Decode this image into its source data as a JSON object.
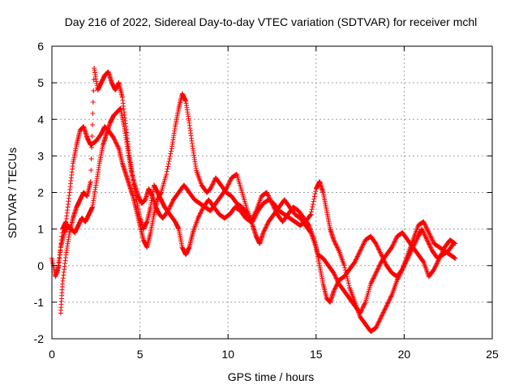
{
  "chart_data": {
    "type": "scatter",
    "title": "Day 216 of 2022, Sidereal Day-to-day VTEC variation (SDTVAR) for receiver mchl",
    "xlabel": "GPS time / hours",
    "ylabel": "SDTVAR / TECUs",
    "xlim": [
      0,
      25
    ],
    "ylim": [
      -2,
      6
    ],
    "xticks": [
      "0",
      "5",
      "10",
      "15",
      "20",
      "25"
    ],
    "yticks": [
      "-2",
      "-1",
      "0",
      "1",
      "2",
      "3",
      "4",
      "5",
      "6"
    ],
    "grid": true,
    "marker": "plus",
    "series": [
      {
        "name": "track-a",
        "color": "#ff0000",
        "points": [
          [
            0.0,
            0.2
          ],
          [
            0.2,
            -0.3
          ],
          [
            0.4,
            0.0
          ],
          [
            0.6,
            1.0
          ],
          [
            0.8,
            1.2
          ],
          [
            1.0,
            2.0
          ],
          [
            1.2,
            2.8
          ],
          [
            1.4,
            3.3
          ],
          [
            1.6,
            3.7
          ],
          [
            1.8,
            3.8
          ],
          [
            2.0,
            3.5
          ],
          [
            2.2,
            3.3
          ],
          [
            2.5,
            3.4
          ],
          [
            2.8,
            3.6
          ],
          [
            3.0,
            3.8
          ],
          [
            3.2,
            3.7
          ],
          [
            3.5,
            3.5
          ],
          [
            3.8,
            3.2
          ],
          [
            4.0,
            2.8
          ],
          [
            4.2,
            2.5
          ],
          [
            4.4,
            2.2
          ],
          [
            4.6,
            1.9
          ],
          [
            4.8,
            1.5
          ],
          [
            5.0,
            1.1
          ],
          [
            5.2,
            0.7
          ],
          [
            5.4,
            0.5
          ],
          [
            5.6,
            0.9
          ],
          [
            5.8,
            1.4
          ],
          [
            6.0,
            1.8
          ],
          [
            6.2,
            2.0
          ],
          [
            6.5,
            2.5
          ],
          [
            6.8,
            3.2
          ],
          [
            7.0,
            3.8
          ],
          [
            7.2,
            4.3
          ],
          [
            7.4,
            4.7
          ],
          [
            7.6,
            4.5
          ],
          [
            7.8,
            3.9
          ],
          [
            8.0,
            3.2
          ],
          [
            8.2,
            2.6
          ],
          [
            8.5,
            2.2
          ],
          [
            8.8,
            2.0
          ],
          [
            9.0,
            2.1
          ],
          [
            9.3,
            2.4
          ],
          [
            9.6,
            2.2
          ],
          [
            9.9,
            2.0
          ],
          [
            10.2,
            1.9
          ],
          [
            10.5,
            1.7
          ],
          [
            10.8,
            1.6
          ],
          [
            11.1,
            1.4
          ],
          [
            11.4,
            1.2
          ],
          [
            11.7,
            1.5
          ],
          [
            12.0,
            1.7
          ],
          [
            12.3,
            1.8
          ],
          [
            12.6,
            1.7
          ],
          [
            12.9,
            1.5
          ],
          [
            13.2,
            1.4
          ],
          [
            13.5,
            1.3
          ],
          [
            13.8,
            1.2
          ],
          [
            14.1,
            1.1
          ],
          [
            14.4,
            1.2
          ],
          [
            14.7,
            1.4
          ],
          [
            15.0,
            2.1
          ],
          [
            15.2,
            2.3
          ],
          [
            15.4,
            2.0
          ],
          [
            15.6,
            1.5
          ],
          [
            15.8,
            1.0
          ],
          [
            16.0,
            0.7
          ],
          [
            16.3,
            0.4
          ],
          [
            16.6,
            0.0
          ],
          [
            16.9,
            -0.6
          ],
          [
            17.2,
            -1.0
          ],
          [
            17.5,
            -1.4
          ],
          [
            17.8,
            -1.6
          ],
          [
            18.1,
            -1.8
          ],
          [
            18.4,
            -1.7
          ],
          [
            18.7,
            -1.4
          ],
          [
            19.0,
            -1.1
          ],
          [
            19.3,
            -0.8
          ],
          [
            19.6,
            -0.4
          ],
          [
            19.9,
            -0.1
          ],
          [
            20.2,
            0.2
          ],
          [
            20.5,
            0.5
          ],
          [
            20.8,
            0.8
          ],
          [
            21.0,
            1.0
          ],
          [
            21.3,
            0.7
          ],
          [
            21.6,
            0.4
          ],
          [
            21.9,
            0.2
          ],
          [
            22.2,
            0.3
          ],
          [
            22.5,
            0.4
          ],
          [
            22.8,
            0.6
          ]
        ]
      },
      {
        "name": "track-b",
        "color": "#ff0000",
        "points": [
          [
            0.3,
            -0.2
          ],
          [
            0.5,
            0.5
          ],
          [
            0.7,
            0.9
          ],
          [
            0.9,
            1.1
          ],
          [
            1.1,
            1.0
          ],
          [
            1.3,
            0.9
          ],
          [
            1.5,
            1.1
          ],
          [
            1.7,
            1.3
          ],
          [
            1.9,
            1.2
          ],
          [
            2.1,
            1.4
          ],
          [
            2.3,
            1.6
          ],
          [
            2.5,
            2.2
          ],
          [
            2.7,
            2.8
          ],
          [
            2.9,
            3.3
          ],
          [
            3.1,
            3.6
          ],
          [
            3.3,
            3.9
          ],
          [
            3.5,
            4.1
          ],
          [
            3.7,
            4.2
          ],
          [
            3.9,
            4.3
          ],
          [
            4.1,
            3.8
          ],
          [
            4.3,
            3.2
          ],
          [
            4.5,
            2.6
          ],
          [
            4.7,
            2.2
          ],
          [
            4.9,
            1.9
          ],
          [
            5.1,
            1.7
          ],
          [
            5.3,
            1.8
          ],
          [
            5.5,
            2.1
          ],
          [
            5.7,
            1.9
          ],
          [
            5.9,
            1.6
          ],
          [
            6.1,
            1.4
          ],
          [
            6.3,
            1.3
          ],
          [
            6.6,
            1.5
          ],
          [
            6.9,
            1.8
          ],
          [
            7.2,
            2.0
          ],
          [
            7.5,
            2.2
          ],
          [
            7.8,
            2.0
          ],
          [
            8.1,
            1.8
          ],
          [
            8.4,
            1.7
          ],
          [
            8.7,
            1.6
          ],
          [
            9.0,
            1.5
          ],
          [
            9.3,
            1.7
          ],
          [
            9.6,
            1.9
          ],
          [
            9.9,
            2.1
          ],
          [
            10.2,
            2.4
          ],
          [
            10.5,
            2.5
          ],
          [
            10.8,
            2.0
          ],
          [
            11.1,
            1.5
          ],
          [
            11.4,
            1.1
          ],
          [
            11.6,
            0.8
          ],
          [
            11.8,
            0.6
          ],
          [
            12.0,
            0.9
          ],
          [
            12.3,
            1.2
          ],
          [
            12.6,
            1.4
          ],
          [
            12.9,
            1.6
          ],
          [
            13.2,
            1.8
          ],
          [
            13.5,
            1.6
          ],
          [
            13.8,
            1.4
          ],
          [
            14.1,
            1.3
          ],
          [
            14.4,
            1.1
          ],
          [
            14.7,
            0.9
          ],
          [
            15.0,
            0.5
          ],
          [
            15.2,
            0.0
          ],
          [
            15.4,
            -0.5
          ],
          [
            15.6,
            -0.9
          ],
          [
            15.8,
            -1.0
          ],
          [
            16.0,
            -0.7
          ],
          [
            16.3,
            -0.4
          ],
          [
            16.6,
            -0.3
          ],
          [
            16.9,
            -0.1
          ],
          [
            17.2,
            0.1
          ],
          [
            17.5,
            0.4
          ],
          [
            17.8,
            0.7
          ],
          [
            18.1,
            0.8
          ],
          [
            18.4,
            0.6
          ],
          [
            18.7,
            0.3
          ],
          [
            19.0,
            0.0
          ],
          [
            19.3,
            -0.2
          ],
          [
            19.6,
            -0.3
          ],
          [
            19.9,
            -0.1
          ],
          [
            20.2,
            0.3
          ],
          [
            20.5,
            0.7
          ],
          [
            20.8,
            1.1
          ],
          [
            21.1,
            1.2
          ],
          [
            21.4,
            0.9
          ],
          [
            21.7,
            0.6
          ],
          [
            22.0,
            0.5
          ],
          [
            22.3,
            0.4
          ],
          [
            22.6,
            0.3
          ],
          [
            22.9,
            0.2
          ]
        ]
      },
      {
        "name": "track-c",
        "color": "#ff0000",
        "points": [
          [
            0.5,
            -1.3
          ],
          [
            0.6,
            -0.5
          ],
          [
            0.8,
            0.3
          ],
          [
            1.0,
            0.9
          ],
          [
            1.2,
            1.3
          ],
          [
            1.4,
            1.6
          ],
          [
            1.6,
            1.8
          ],
          [
            1.8,
            2.0
          ],
          [
            2.0,
            1.9
          ],
          [
            2.2,
            2.3
          ],
          [
            2.4,
            5.4
          ],
          [
            2.6,
            4.8
          ],
          [
            2.8,
            5.0
          ],
          [
            3.0,
            5.2
          ],
          [
            3.2,
            5.3
          ],
          [
            3.4,
            5.0
          ],
          [
            3.6,
            4.8
          ],
          [
            3.8,
            5.0
          ],
          [
            4.0,
            4.6
          ],
          [
            4.2,
            3.8
          ],
          [
            4.4,
            3.0
          ],
          [
            4.6,
            2.4
          ],
          [
            4.8,
            1.8
          ],
          [
            5.0,
            1.3
          ],
          [
            5.2,
            1.0
          ],
          [
            5.4,
            1.2
          ],
          [
            5.6,
            1.6
          ],
          [
            5.8,
            2.2
          ],
          [
            6.0,
            2.0
          ],
          [
            6.2,
            1.8
          ],
          [
            6.4,
            1.6
          ],
          [
            6.7,
            1.4
          ],
          [
            7.0,
            1.2
          ],
          [
            7.2,
            1.0
          ],
          [
            7.4,
            0.5
          ],
          [
            7.6,
            0.3
          ],
          [
            7.8,
            0.5
          ],
          [
            8.0,
            0.9
          ],
          [
            8.3,
            1.3
          ],
          [
            8.6,
            1.6
          ],
          [
            8.9,
            1.8
          ],
          [
            9.2,
            1.6
          ],
          [
            9.5,
            1.4
          ],
          [
            9.8,
            1.3
          ],
          [
            10.1,
            1.4
          ],
          [
            10.4,
            1.6
          ],
          [
            10.7,
            1.5
          ],
          [
            11.0,
            1.3
          ],
          [
            11.3,
            1.2
          ],
          [
            11.6,
            1.5
          ],
          [
            11.9,
            1.9
          ],
          [
            12.2,
            2.0
          ],
          [
            12.5,
            1.7
          ],
          [
            12.8,
            1.4
          ],
          [
            13.1,
            1.2
          ],
          [
            13.4,
            1.4
          ],
          [
            13.7,
            1.6
          ],
          [
            14.0,
            1.5
          ],
          [
            14.3,
            1.3
          ],
          [
            14.6,
            1.1
          ],
          [
            14.9,
            0.7
          ],
          [
            15.1,
            0.3
          ],
          [
            15.4,
            0.2
          ],
          [
            15.7,
            0.0
          ],
          [
            16.0,
            -0.2
          ],
          [
            16.3,
            -0.5
          ],
          [
            16.6,
            -0.7
          ],
          [
            16.9,
            -0.9
          ],
          [
            17.2,
            -1.1
          ],
          [
            17.5,
            -1.3
          ],
          [
            17.8,
            -1.0
          ],
          [
            18.1,
            -0.5
          ],
          [
            18.4,
            -0.2
          ],
          [
            18.7,
            0.1
          ],
          [
            19.0,
            0.3
          ],
          [
            19.3,
            0.5
          ],
          [
            19.6,
            0.8
          ],
          [
            19.9,
            0.9
          ],
          [
            20.2,
            0.7
          ],
          [
            20.5,
            0.5
          ],
          [
            20.8,
            0.3
          ],
          [
            21.1,
            0.1
          ],
          [
            21.4,
            -0.3
          ],
          [
            21.7,
            -0.1
          ],
          [
            22.0,
            0.2
          ],
          [
            22.3,
            0.5
          ],
          [
            22.6,
            0.7
          ],
          [
            22.9,
            0.6
          ]
        ]
      }
    ]
  }
}
